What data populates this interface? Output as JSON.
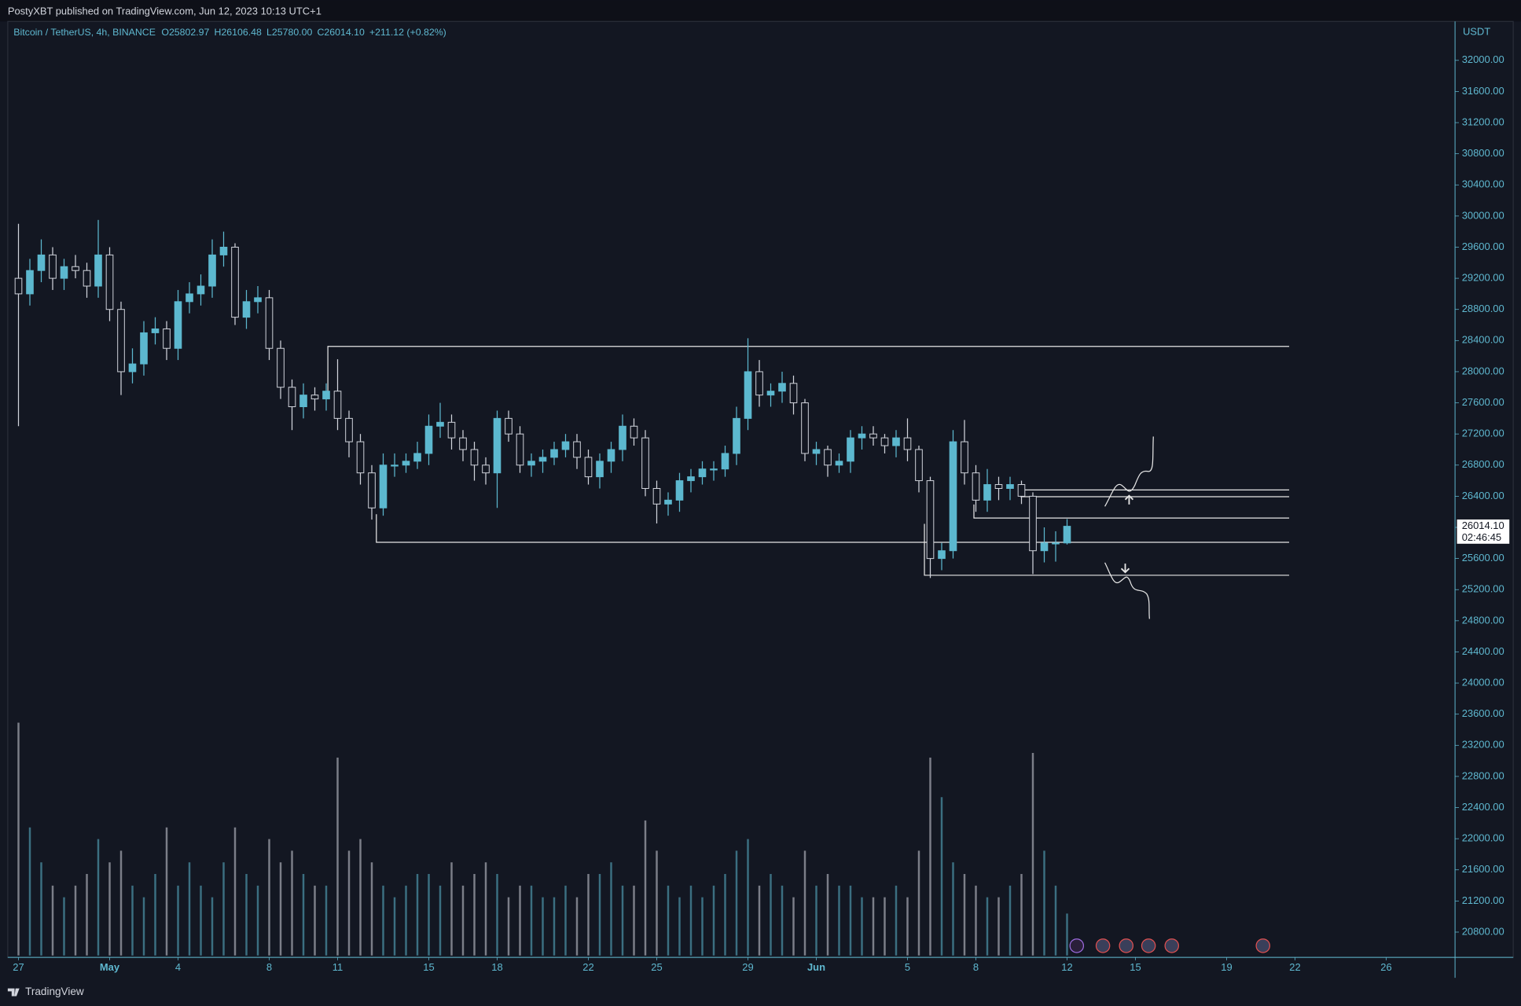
{
  "header": {
    "publisher": "PostyXBT published on TradingView.com, Jun 12, 2023 10:13 UTC+1"
  },
  "footer": {
    "brand": "TradingView"
  },
  "chart_data": {
    "type": "candlestick",
    "legend": {
      "symbol": "Bitcoin / TetherUS, 4h, BINANCE",
      "ohlc": [
        {
          "key": "O",
          "value": "25802.97"
        },
        {
          "key": "H",
          "value": "26106.48"
        },
        {
          "key": "L",
          "value": "25780.00"
        },
        {
          "key": "C",
          "value": "26014.10"
        }
      ],
      "change": "+211.12 (+0.82%)"
    },
    "currency": "USDT",
    "up_color": "#5cb8cf",
    "down_color": "#d1d4dc",
    "x": [
      0,
      0.5,
      1,
      1.5,
      2,
      2.5,
      3,
      3.5,
      4,
      4.5,
      5,
      5.5,
      6,
      6.5,
      7,
      7.5,
      8,
      8.5,
      9,
      9.5,
      10,
      10.5,
      11,
      11.5,
      12,
      12.5,
      13,
      13.5,
      14,
      14.5,
      15,
      15.5,
      16,
      16.5,
      17,
      17.5,
      18,
      18.5,
      19,
      19.5,
      20,
      20.5,
      21,
      21.5,
      22,
      22.5,
      23,
      23.5,
      24,
      24.5,
      25,
      25.5,
      26,
      26.5,
      27,
      27.5,
      28,
      28.5,
      29,
      29.5,
      30,
      30.5,
      31,
      31.5,
      32,
      32.5,
      33,
      33.5,
      34,
      34.5,
      35,
      35.5,
      36,
      36.5,
      37,
      37.5,
      38,
      38.5,
      39,
      39.5,
      40,
      40.5,
      41,
      41.5,
      42,
      42.5,
      43,
      43.5,
      44,
      44.5,
      45,
      45.5,
      46
    ],
    "open": [
      29200,
      29000,
      29300,
      29500,
      29200,
      29350,
      29300,
      29100,
      29500,
      28800,
      28000,
      28100,
      28500,
      28550,
      28300,
      28900,
      29000,
      29100,
      29500,
      29600,
      28700,
      28900,
      28950,
      28300,
      27800,
      27550,
      27700,
      27650,
      27750,
      27400,
      27100,
      26700,
      26250,
      26800,
      26800,
      26850,
      26950,
      27300,
      27350,
      27150,
      27000,
      26800,
      26700,
      27400,
      27200,
      26800,
      26850,
      26900,
      27000,
      27100,
      26900,
      26650,
      26850,
      27000,
      27300,
      27150,
      26500,
      26300,
      26350,
      26600,
      26650,
      26750,
      26750,
      26950,
      27400,
      28000,
      27700,
      27750,
      27850,
      27600,
      26950,
      27000,
      26800,
      26850,
      27150,
      27200,
      27150,
      27050,
      27150,
      27000,
      26600,
      25600,
      25700,
      27100,
      26700,
      26350,
      26550,
      26500,
      26550,
      26400,
      25700,
      25800,
      25800
    ],
    "high": [
      29900,
      29450,
      29700,
      29600,
      29450,
      29500,
      29400,
      29950,
      29600,
      28900,
      28300,
      28650,
      28700,
      28650,
      29050,
      29150,
      29250,
      29700,
      29800,
      29650,
      29050,
      29100,
      29050,
      28400,
      27900,
      27850,
      27800,
      27850,
      28160,
      27500,
      27200,
      26800,
      26950,
      26950,
      26950,
      27100,
      27450,
      27600,
      27450,
      27250,
      27100,
      26900,
      27500,
      27500,
      27300,
      26950,
      27000,
      27100,
      27200,
      27200,
      27000,
      26950,
      27100,
      27450,
      27400,
      27250,
      26600,
      26450,
      26700,
      26750,
      26850,
      26850,
      27050,
      27550,
      28430,
      28150,
      27850,
      28000,
      27950,
      27650,
      27100,
      27050,
      26950,
      27250,
      27300,
      27300,
      27200,
      27250,
      27400,
      27050,
      26650,
      25800,
      27250,
      27380,
      26800,
      26750,
      26650,
      26650,
      26600,
      26450,
      26000,
      25950,
      26106.48
    ],
    "low": [
      27300,
      28850,
      29150,
      29050,
      29050,
      29200,
      28950,
      28950,
      28650,
      27700,
      27850,
      27950,
      28350,
      28150,
      28150,
      28750,
      28850,
      28950,
      29350,
      28600,
      28550,
      28750,
      28150,
      27650,
      27250,
      27400,
      27500,
      27500,
      27250,
      26900,
      26550,
      26100,
      26150,
      26650,
      26700,
      26750,
      26800,
      27150,
      27000,
      26850,
      26600,
      26550,
      26250,
      27100,
      26700,
      26650,
      26700,
      26800,
      26900,
      26750,
      26550,
      26500,
      26700,
      26850,
      27050,
      26400,
      26050,
      26150,
      26200,
      26450,
      26550,
      26600,
      26650,
      26800,
      27250,
      27550,
      27550,
      27600,
      27450,
      26850,
      26800,
      26650,
      26700,
      26700,
      27000,
      27050,
      26950,
      26900,
      26850,
      26450,
      25350,
      25450,
      25600,
      26550,
      26200,
      26200,
      26350,
      26350,
      26300,
      25400,
      25550,
      25560,
      25780
    ],
    "close": [
      29000,
      29300,
      29500,
      29200,
      29350,
      29300,
      29100,
      29500,
      28800,
      28000,
      28100,
      28500,
      28550,
      28300,
      28900,
      29000,
      29100,
      29500,
      29600,
      28700,
      28900,
      28950,
      28300,
      27800,
      27550,
      27700,
      27650,
      27750,
      27400,
      27100,
      26700,
      26250,
      26800,
      26800,
      26850,
      26950,
      27300,
      27350,
      27150,
      27000,
      26800,
      26700,
      27400,
      27200,
      26800,
      26850,
      26900,
      27000,
      27100,
      26900,
      26650,
      26850,
      27000,
      27300,
      27150,
      26500,
      26300,
      26350,
      26600,
      26650,
      26750,
      26750,
      26950,
      27400,
      28000,
      27700,
      27750,
      27850,
      27600,
      26950,
      27000,
      26800,
      26850,
      27150,
      27200,
      27150,
      27050,
      27150,
      27000,
      26600,
      25600,
      25700,
      27100,
      26700,
      26350,
      26550,
      26500,
      26550,
      26400,
      25700,
      25800,
      25800,
      26014.1
    ],
    "volume": [
      100,
      55,
      40,
      30,
      25,
      30,
      35,
      50,
      40,
      45,
      30,
      25,
      35,
      55,
      30,
      40,
      30,
      25,
      40,
      55,
      35,
      30,
      50,
      40,
      45,
      35,
      30,
      30,
      85,
      45,
      50,
      40,
      30,
      25,
      30,
      35,
      35,
      30,
      40,
      30,
      35,
      40,
      35,
      25,
      30,
      30,
      25,
      25,
      30,
      25,
      35,
      35,
      40,
      30,
      30,
      58,
      45,
      30,
      25,
      30,
      25,
      30,
      35,
      45,
      50,
      30,
      35,
      30,
      25,
      45,
      30,
      35,
      30,
      30,
      25,
      25,
      25,
      30,
      25,
      45,
      85,
      68,
      40,
      35,
      30,
      25,
      25,
      30,
      35,
      87,
      45,
      30,
      18
    ],
    "last_price": {
      "value": 26014.1,
      "label": "26014.10"
    },
    "countdown": "02:46:45",
    "xlim": [
      -0.47,
      63.02
    ],
    "xticks": [
      {
        "value": 0,
        "label": "27"
      },
      {
        "value": 4,
        "label": "May"
      },
      {
        "value": 7,
        "label": "4"
      },
      {
        "value": 11,
        "label": "8"
      },
      {
        "value": 14,
        "label": "11"
      },
      {
        "value": 18,
        "label": "15"
      },
      {
        "value": 21,
        "label": "18"
      },
      {
        "value": 25,
        "label": "22"
      },
      {
        "value": 28,
        "label": "25"
      },
      {
        "value": 32,
        "label": "29"
      },
      {
        "value": 35,
        "label": "Jun"
      },
      {
        "value": 39,
        "label": "5"
      },
      {
        "value": 42,
        "label": "8"
      },
      {
        "value": 46,
        "label": "12"
      },
      {
        "value": 49,
        "label": "15"
      },
      {
        "value": 53,
        "label": "19"
      },
      {
        "value": 56,
        "label": "22"
      },
      {
        "value": 60,
        "label": "26"
      }
    ],
    "ylim": [
      20500,
      32500
    ],
    "yticks": [
      {
        "value": 20800,
        "label": "20800.00"
      },
      {
        "value": 21200,
        "label": "21200.00"
      },
      {
        "value": 21600,
        "label": "21600.00"
      },
      {
        "value": 22000,
        "label": "22000.00"
      },
      {
        "value": 22400,
        "label": "22400.00"
      },
      {
        "value": 22800,
        "label": "22800.00"
      },
      {
        "value": 23200,
        "label": "23200.00"
      },
      {
        "value": 23600,
        "label": "23600.00"
      },
      {
        "value": 24000,
        "label": "24000.00"
      },
      {
        "value": 24400,
        "label": "24400.00"
      },
      {
        "value": 24800,
        "label": "24800.00"
      },
      {
        "value": 25200,
        "label": "25200.00"
      },
      {
        "value": 25600,
        "label": "25600.00"
      },
      {
        "value": 26000,
        "label": "26000.00"
      },
      {
        "value": 26400,
        "label": "26400.00"
      },
      {
        "value": 26800,
        "label": "26800.00"
      },
      {
        "value": 27200,
        "label": "27200.00"
      },
      {
        "value": 27600,
        "label": "27600.00"
      },
      {
        "value": 28000,
        "label": "28000.00"
      },
      {
        "value": 28400,
        "label": "28400.00"
      },
      {
        "value": 28800,
        "label": "28800.00"
      },
      {
        "value": 29200,
        "label": "29200.00"
      },
      {
        "value": 29600,
        "label": "29600.00"
      },
      {
        "value": 30000,
        "label": "30000.00"
      },
      {
        "value": 30400,
        "label": "30400.00"
      },
      {
        "value": 30800,
        "label": "30800.00"
      },
      {
        "value": 31200,
        "label": "31200.00"
      },
      {
        "value": 31600,
        "label": "31600.00"
      },
      {
        "value": 32000,
        "label": "32000.00"
      }
    ]
  }
}
